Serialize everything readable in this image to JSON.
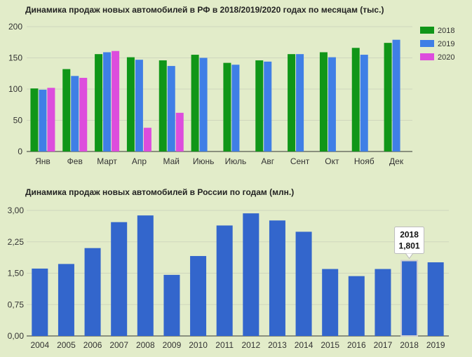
{
  "chart_data": [
    {
      "type": "bar",
      "title": "Динамика продаж новых автомобилей в РФ в 2018/2019/2020 годах по месяцам (тыс.)",
      "categories": [
        "Янв",
        "Фев",
        "Март",
        "Апр",
        "Май",
        "Июнь",
        "Июль",
        "Авг",
        "Сент",
        "Окт",
        "Нояб",
        "Дек"
      ],
      "series": [
        {
          "name": "2018",
          "color": "#109618",
          "values": [
            101,
            132,
            156,
            151,
            146,
            155,
            142,
            146,
            156,
            159,
            166,
            174
          ]
        },
        {
          "name": "2019",
          "color": "#3f7fe6",
          "values": [
            99,
            121,
            159,
            147,
            137,
            150,
            139,
            144,
            156,
            151,
            155,
            179
          ]
        },
        {
          "name": "2020",
          "color": "#dd4ddd",
          "values": [
            102,
            118,
            161,
            38,
            62,
            null,
            null,
            null,
            null,
            null,
            null,
            null
          ]
        }
      ],
      "yticks": [
        "0",
        "50",
        "100",
        "150",
        "200"
      ],
      "ylim": [
        0,
        200
      ],
      "grid": true,
      "legend": "right"
    },
    {
      "type": "bar",
      "title": "Динамика продаж новых автомобилей в России по годам (млн.)",
      "categories": [
        "2004",
        "2005",
        "2006",
        "2007",
        "2008",
        "2009",
        "2010",
        "2011",
        "2012",
        "2013",
        "2014",
        "2015",
        "2016",
        "2017",
        "2018",
        "2019"
      ],
      "series": [
        {
          "color": "#3366cc",
          "values": [
            1.61,
            1.72,
            2.1,
            2.72,
            2.88,
            1.46,
            1.91,
            2.64,
            2.93,
            2.76,
            2.49,
            1.6,
            1.43,
            1.6,
            1.801,
            1.76
          ]
        }
      ],
      "yticks": [
        "0,00",
        "0,75",
        "1,50",
        "2,25",
        "3,00"
      ],
      "ylim": [
        0,
        3.0
      ],
      "grid": true,
      "highlight_index": 14,
      "tooltip": {
        "line1": "2018",
        "line2": "1,801"
      }
    }
  ]
}
